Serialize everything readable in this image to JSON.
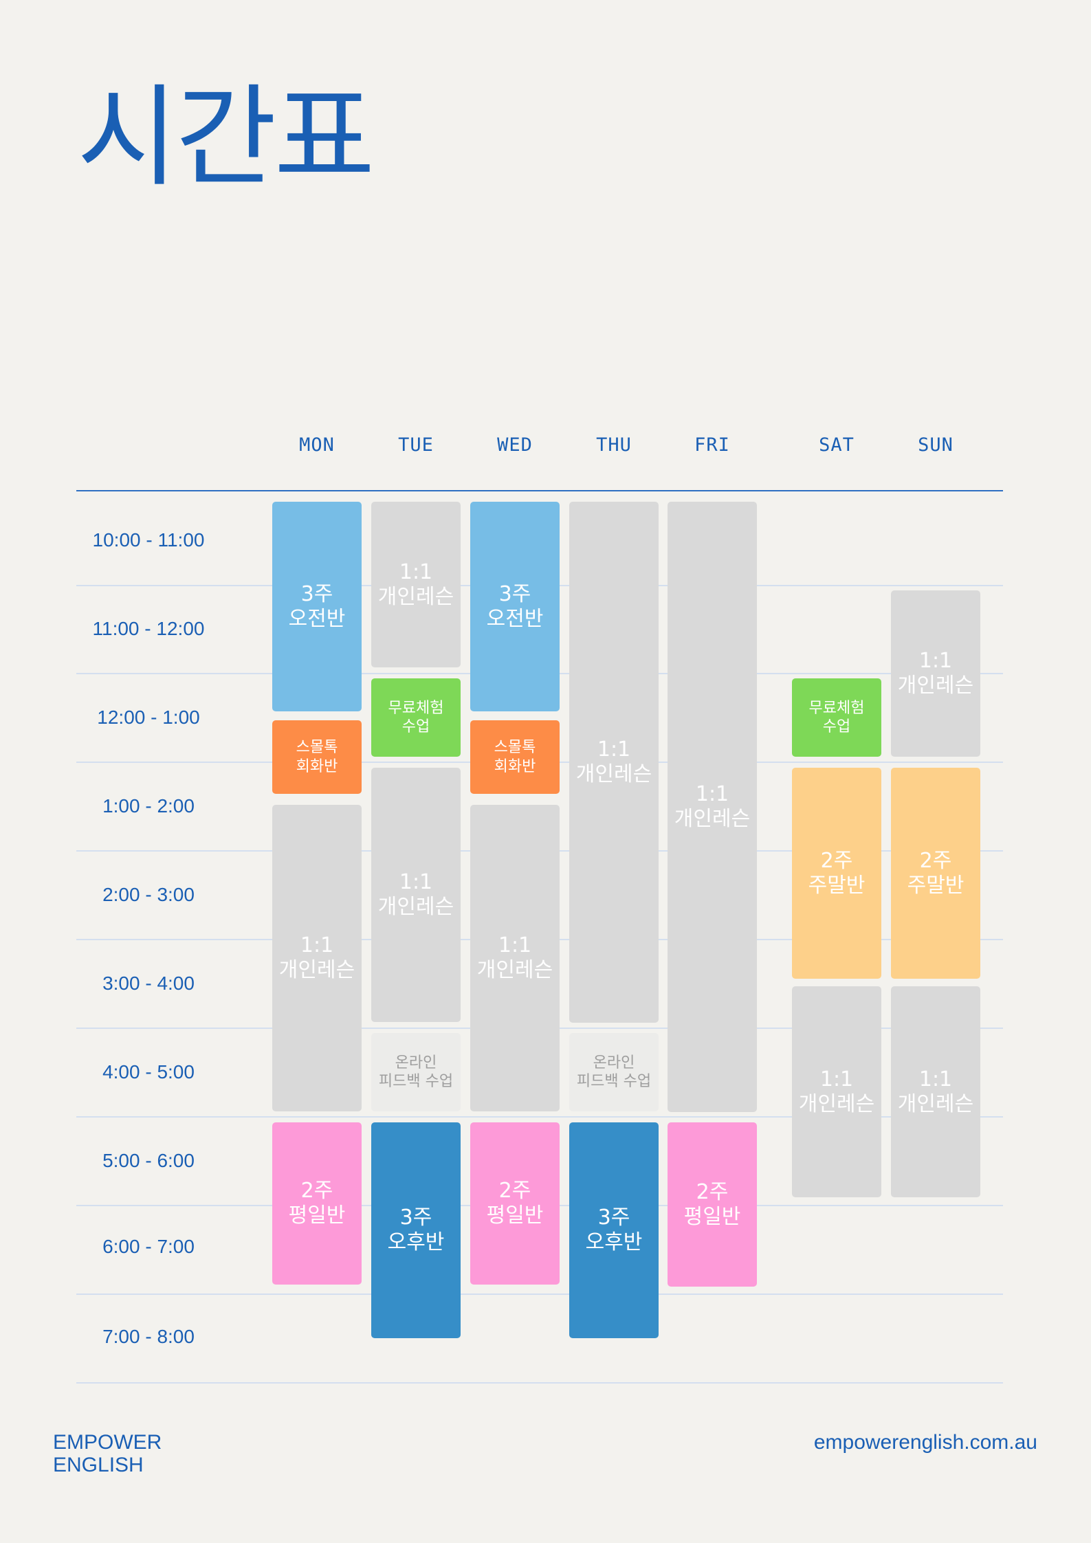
{
  "title": "시간표",
  "days": [
    "MON",
    "TUE",
    "WED",
    "THU",
    "FRI",
    "SAT",
    "SUN"
  ],
  "times": [
    "10:00 - 11:00",
    "11:00 - 12:00",
    "12:00 - 1:00",
    "1:00 - 2:00",
    "2:00 - 3:00",
    "3:00 - 4:00",
    "4:00 - 5:00",
    "5:00 - 6:00",
    "6:00 - 7:00",
    "7:00 - 8:00"
  ],
  "labels": {
    "private": "1:1\n개인레슨",
    "morning3": "3주\n오전반",
    "smalltalk": "스몰톡\n회화반",
    "trial": "무료체험\n수업",
    "online": "온라인\n피드백 수업",
    "weekday2": "2주\n평일반",
    "afternoon3": "3주\n오후반",
    "weekend2": "2주\n주말반"
  },
  "colors": {
    "gray": "#d9d9d9",
    "lightblue": "#77bde6",
    "orange": "#fd8c47",
    "green": "#7ed857",
    "pink": "#fd9ad8",
    "blue": "#368ec8",
    "peach": "#fdd08a",
    "pale": "#ececea",
    "accent": "#1a5fb4"
  },
  "footer": {
    "brand_line1": "EMPOWER",
    "brand_line2": "ENGLISH",
    "website": "empowerenglish.com.au"
  }
}
